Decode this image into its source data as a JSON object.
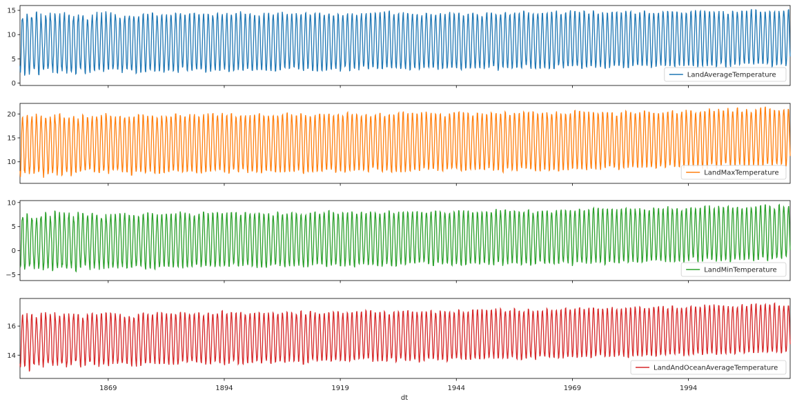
{
  "chart_data": {
    "type": "line",
    "xlabel": "dt",
    "x_range": [
      "1850-01",
      "2015-12"
    ],
    "x_tick_labels": [
      "1869",
      "1894",
      "1919",
      "1944",
      "1969",
      "1994"
    ],
    "grid": false,
    "legend_placement": "lower-right",
    "shared_x": true,
    "panels": [
      {
        "series_name": "LandAverageTemperature",
        "color": "#1f77b4",
        "ylim": [
          -0.5,
          16
        ],
        "yticks": [
          0,
          5,
          10,
          15
        ],
        "ytick_labels": [
          "0",
          "5",
          "10",
          "15"
        ],
        "trend_start_mean": 8.2,
        "trend_end_mean": 9.4,
        "trend_start_amplitude": 5.9,
        "trend_end_amplitude": 5.6
      },
      {
        "series_name": "LandMaxTemperature",
        "color": "#ff7f0e",
        "ylim": [
          5.5,
          22.2
        ],
        "yticks": [
          10,
          15,
          20
        ],
        "ytick_labels": [
          "10",
          "15",
          "20"
        ],
        "trend_start_mean": 13.5,
        "trend_end_mean": 15.1,
        "trend_start_amplitude": 6.0,
        "trend_end_amplitude": 5.9
      },
      {
        "series_name": "LandMinTemperature",
        "color": "#2ca02c",
        "ylim": [
          -6.2,
          10.4
        ],
        "yticks": [
          -5,
          0,
          5,
          10
        ],
        "ytick_labels": [
          "−5",
          "0",
          "5",
          "10"
        ],
        "trend_start_mean": 1.8,
        "trend_end_mean": 3.8,
        "trend_start_amplitude": 5.6,
        "trend_end_amplitude": 5.6
      },
      {
        "series_name": "LandAndOceanAverageTemperature",
        "color": "#d62728",
        "ylim": [
          12.4,
          17.9
        ],
        "yticks": [
          14,
          16
        ],
        "ytick_labels": [
          "14",
          "16"
        ],
        "trend_start_mean": 15.0,
        "trend_end_mean": 15.9,
        "trend_start_amplitude": 1.75,
        "trend_end_amplitude": 1.65
      }
    ]
  }
}
